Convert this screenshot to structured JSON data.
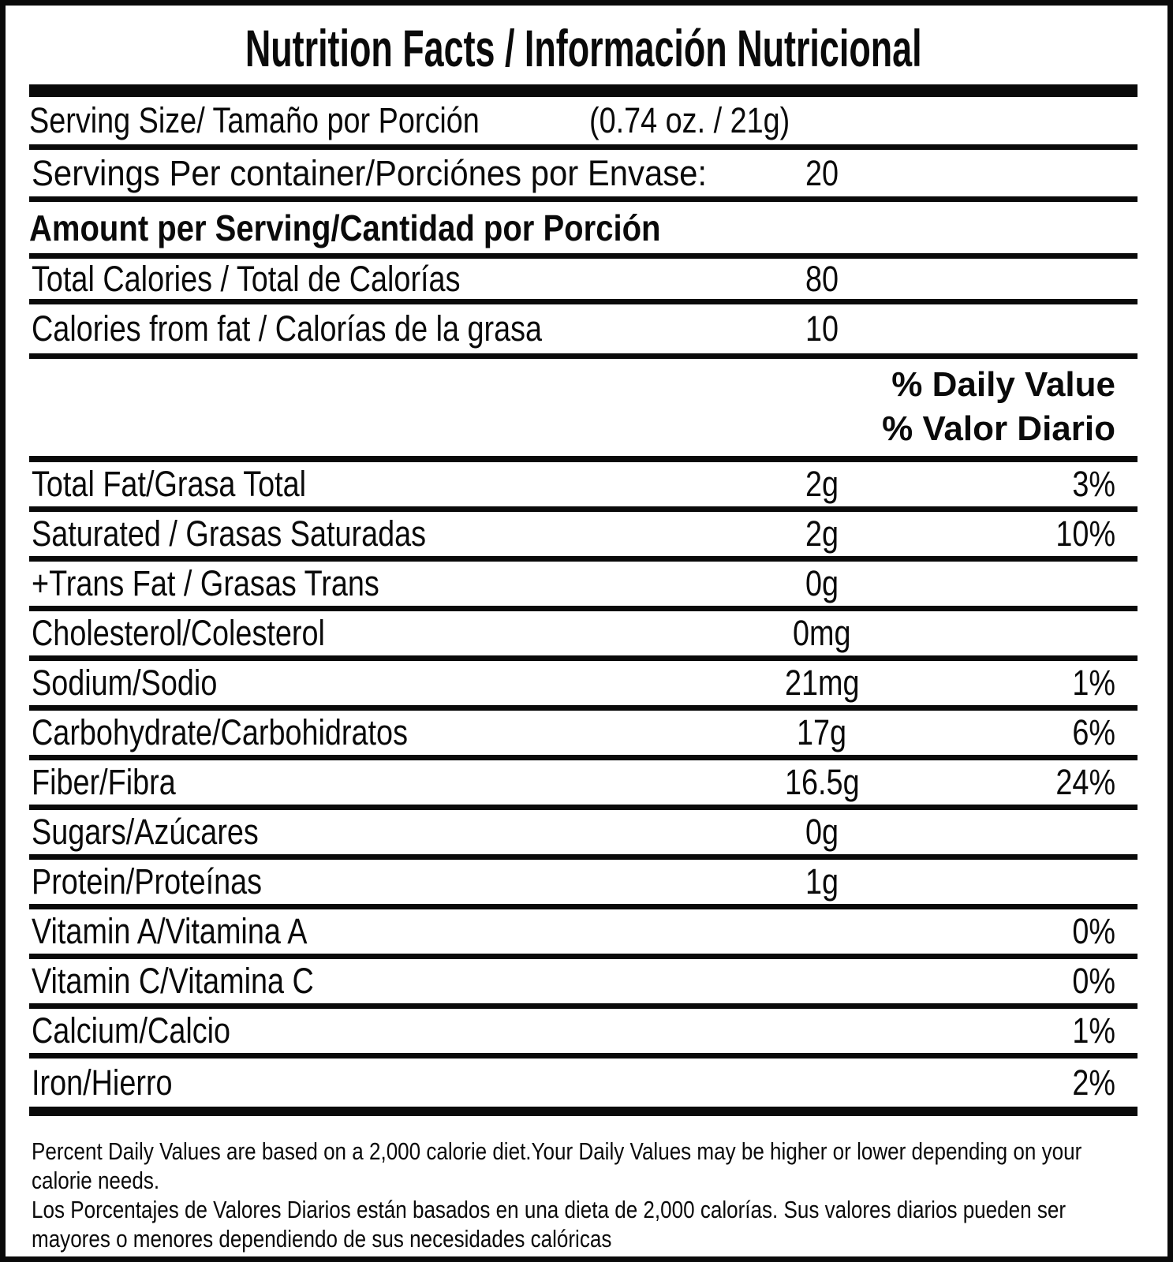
{
  "label": {
    "title": "Nutrition Facts / Información Nutricional",
    "serving_size": {
      "label": "Serving Size/ Tamaño por Porción",
      "value": "(0.74 oz. / 21g)"
    },
    "servings_per_container": {
      "label": "Servings Per container/Porciónes por Envase:",
      "value": "20"
    },
    "amount_per_serving_heading": "Amount per Serving/Cantidad por Porción",
    "total_calories": {
      "label": "Total Calories / Total de Calorías",
      "amount": "80"
    },
    "calories_from_fat": {
      "label": "Calories from fat / Calorías de la grasa",
      "amount": "10"
    },
    "daily_value_header": {
      "line1": "% Daily Value",
      "line2": "% Valor Diario"
    },
    "nutrients": [
      {
        "label": "Total Fat/Grasa Total",
        "amount": "2g",
        "dv": "3%"
      },
      {
        "label": "Saturated / Grasas Saturadas",
        "amount": "2g",
        "dv": "10%"
      },
      {
        "label": "+Trans Fat / Grasas Trans",
        "amount": "0g",
        "dv": ""
      },
      {
        "label": "Cholesterol/Colesterol",
        "amount": "0mg",
        "dv": ""
      },
      {
        "label": "Sodium/Sodio",
        "amount": "21mg",
        "dv": "1%"
      },
      {
        "label": "Carbohydrate/Carbohidratos",
        "amount": "17g",
        "dv": "6%"
      },
      {
        "label": "Fiber/Fibra",
        "amount": "16.5g",
        "dv": "24%"
      },
      {
        "label": "Sugars/Azúcares",
        "amount": "0g",
        "dv": ""
      },
      {
        "label": "Protein/Proteínas",
        "amount": "1g",
        "dv": ""
      },
      {
        "label": "Vitamin A/Vitamina A",
        "amount": "",
        "dv": "0%"
      },
      {
        "label": "Vitamin C/Vitamina C",
        "amount": "",
        "dv": "0%"
      },
      {
        "label": "Calcium/Calcio",
        "amount": "",
        "dv": "1%"
      },
      {
        "label": "Iron/Hierro",
        "amount": "",
        "dv": "2%"
      }
    ],
    "footnotes": {
      "english": "Percent Daily Values are based on a 2,000 calorie diet.Your Daily Values may be higher or lower depending on your calorie needs.",
      "spanish": "Los Porcentajes de Valores Diarios están basados en una dieta de 2,000 calorías. Sus valores diarios pueden ser mayores o menores dependiendo de sus necesidades calóricas"
    },
    "colors": {
      "ink": "#0a0a0a",
      "background": "#ffffff"
    }
  }
}
